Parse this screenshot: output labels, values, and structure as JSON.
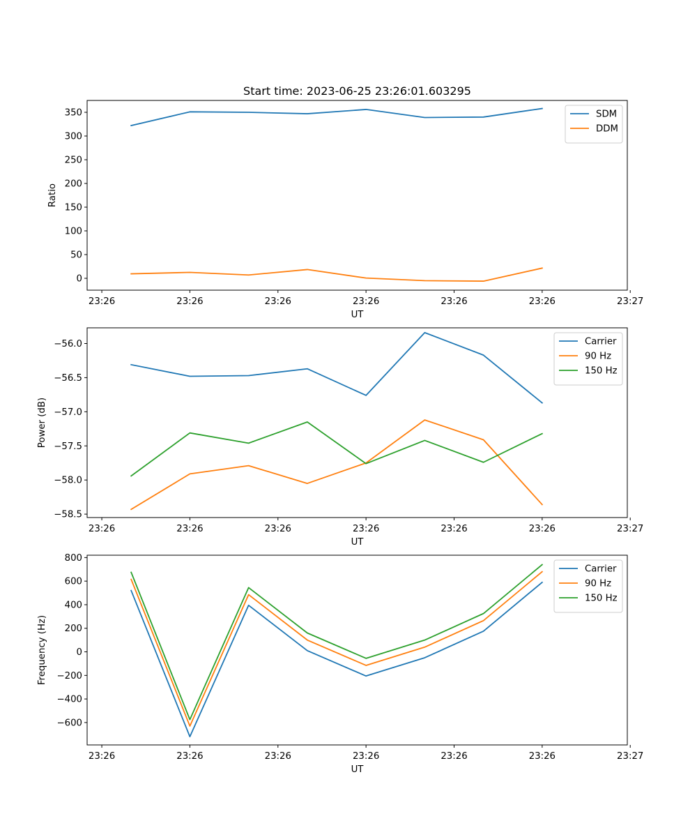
{
  "figure": {
    "title": "Start time: 2023-06-25 23:26:01.603295"
  },
  "chart_data": [
    {
      "type": "line",
      "title": "Start time: 2023-06-25 23:26:01.603295",
      "xlabel": "UT",
      "ylabel": "Ratio",
      "x": [
        1,
        2,
        3,
        4,
        5,
        6,
        7,
        8
      ],
      "xlim": [
        0.25,
        9.45
      ],
      "x_ticks": [
        0.5,
        2.0,
        3.5,
        5.0,
        6.5,
        8.0,
        9.5
      ],
      "x_tick_labels": [
        "23:26",
        "23:26",
        "23:26",
        "23:26",
        "23:26",
        "23:26",
        "23:27"
      ],
      "ylim": [
        -25,
        375
      ],
      "y_ticks": [
        0,
        50,
        100,
        150,
        200,
        250,
        300,
        350
      ],
      "legend": "top-right",
      "grid": false,
      "series": [
        {
          "name": "SDM",
          "color": "#1f77b4",
          "values": [
            322,
            351,
            350,
            347,
            356,
            339,
            340,
            358
          ]
        },
        {
          "name": "DDM",
          "color": "#ff7f0e",
          "values": [
            9.5,
            12.5,
            7,
            18.5,
            0.5,
            -5,
            -6,
            21.5
          ]
        }
      ]
    },
    {
      "type": "line",
      "xlabel": "UT",
      "ylabel": "Power (dB)",
      "x": [
        1,
        2,
        3,
        4,
        5,
        6,
        7,
        8
      ],
      "xlim": [
        0.25,
        9.45
      ],
      "x_ticks": [
        0.5,
        2.0,
        3.5,
        5.0,
        6.5,
        8.0,
        9.5
      ],
      "x_tick_labels": [
        "23:26",
        "23:26",
        "23:26",
        "23:26",
        "23:26",
        "23:26",
        "23:27"
      ],
      "ylim": [
        -58.55,
        -55.77
      ],
      "y_ticks": [
        -58.5,
        -58.0,
        -57.5,
        -57.0,
        -56.5,
        -56.0
      ],
      "y_tick_labels": [
        "−58.5",
        "−58.0",
        "−57.5",
        "−57.0",
        "−56.5",
        "−56.0"
      ],
      "legend": "top-right",
      "grid": false,
      "series": [
        {
          "name": "Carrier",
          "color": "#1f77b4",
          "values": [
            -56.31,
            -56.48,
            -56.47,
            -56.37,
            -56.76,
            -55.84,
            -56.17,
            -56.87
          ]
        },
        {
          "name": "90 Hz",
          "color": "#ff7f0e",
          "values": [
            -58.43,
            -57.91,
            -57.79,
            -58.05,
            -57.75,
            -57.12,
            -57.41,
            -58.36
          ]
        },
        {
          "name": "150 Hz",
          "color": "#2ca02c",
          "values": [
            -57.94,
            -57.31,
            -57.46,
            -57.15,
            -57.76,
            -57.42,
            -57.74,
            -57.32
          ]
        }
      ]
    },
    {
      "type": "line",
      "xlabel": "UT",
      "ylabel": "Frequency (Hz)",
      "x": [
        1,
        2,
        3,
        4,
        5,
        6,
        7,
        8
      ],
      "xlim": [
        0.25,
        9.45
      ],
      "x_ticks": [
        0.5,
        2.0,
        3.5,
        5.0,
        6.5,
        8.0,
        9.5
      ],
      "x_tick_labels": [
        "23:26",
        "23:26",
        "23:26",
        "23:26",
        "23:26",
        "23:26",
        "23:27"
      ],
      "ylim": [
        -790,
        820
      ],
      "y_ticks": [
        -600,
        -400,
        -200,
        0,
        200,
        400,
        600,
        800
      ],
      "y_tick_labels": [
        "−600",
        "−400",
        "−200",
        "0",
        "200",
        "400",
        "600",
        "800"
      ],
      "legend": "top-right",
      "grid": false,
      "series": [
        {
          "name": "Carrier",
          "color": "#1f77b4",
          "values": [
            520,
            -720,
            395,
            10,
            -205,
            -50,
            175,
            590
          ]
        },
        {
          "name": "90 Hz",
          "color": "#ff7f0e",
          "values": [
            615,
            -630,
            485,
            100,
            -115,
            40,
            265,
            680
          ]
        },
        {
          "name": "150 Hz",
          "color": "#2ca02c",
          "values": [
            675,
            -575,
            545,
            160,
            -55,
            100,
            325,
            740
          ]
        }
      ]
    }
  ]
}
